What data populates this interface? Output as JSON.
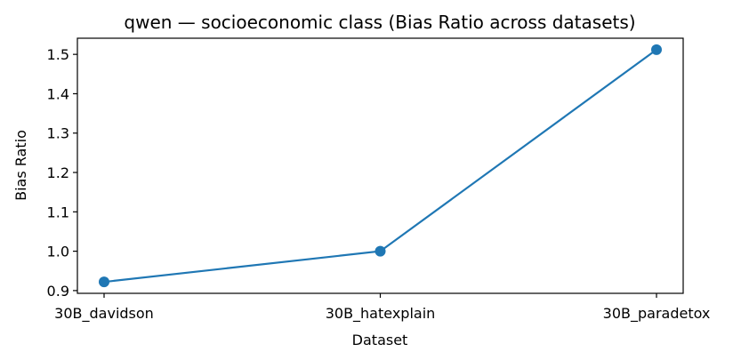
{
  "chart_data": {
    "type": "line",
    "title": "qwen — socioeconomic class (Bias Ratio across datasets)",
    "xlabel": "Dataset",
    "ylabel": "Bias Ratio",
    "categories": [
      "30B_davidson",
      "30B_hatexplain",
      "30B_paradetox"
    ],
    "series": [
      {
        "values": [
          0.922,
          1.0,
          1.512
        ]
      }
    ],
    "ylim": [
      0.893,
      1.541
    ],
    "yticks": [
      0.9,
      1.0,
      1.1,
      1.2,
      1.3,
      1.4,
      1.5
    ],
    "ytick_labels": [
      "0.9",
      "1.0",
      "1.1",
      "1.2",
      "1.3",
      "1.4",
      "1.5"
    ],
    "grid": false,
    "colors": {
      "series": "#1f77b4",
      "axes": "#000000"
    }
  }
}
